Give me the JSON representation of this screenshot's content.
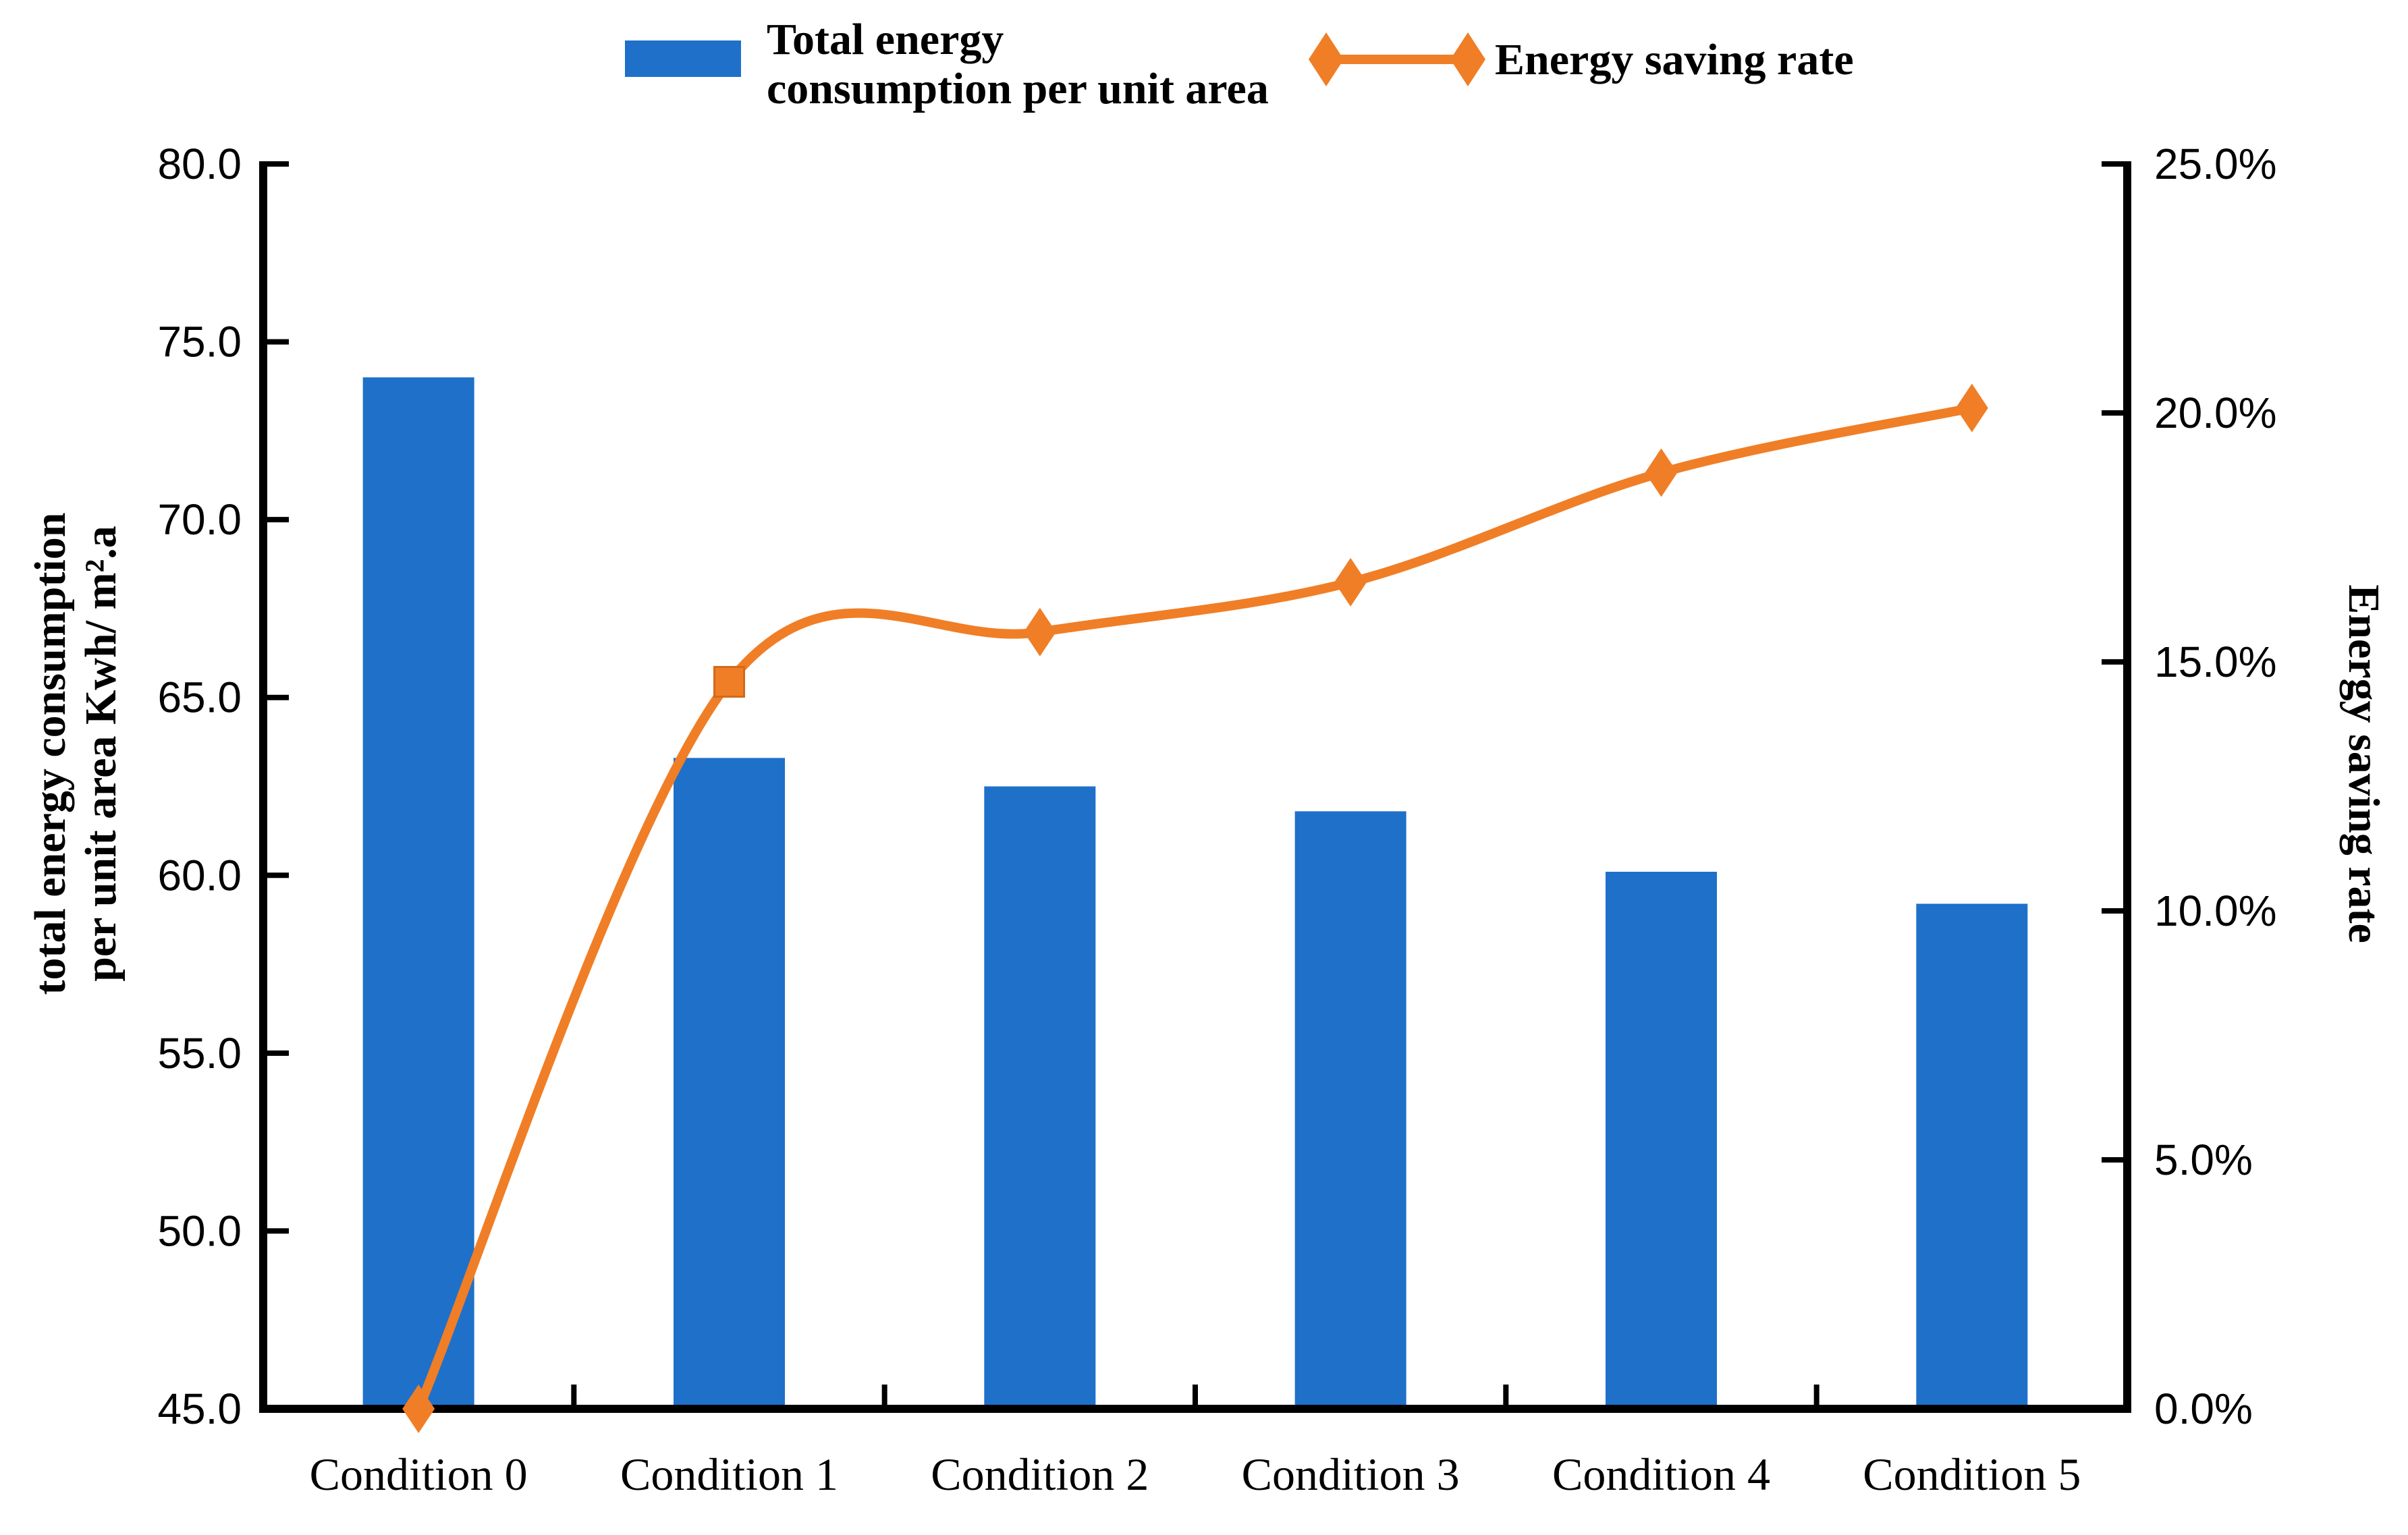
{
  "chart_data": {
    "type": "combo-bar-line",
    "categories": [
      "Condition 0",
      "Condition 1",
      "Condition 2",
      "Condition 3",
      "Condition 4",
      "Condition 5"
    ],
    "series": [
      {
        "name": "Total energy consumption per unit area",
        "type": "bar",
        "axis": "left",
        "color": "#1F70C9",
        "values": [
          74.0,
          63.3,
          62.5,
          61.8,
          60.1,
          59.2
        ]
      },
      {
        "name": "Energy saving rate",
        "type": "line",
        "axis": "right",
        "color": "#F07E26",
        "values": [
          0.0,
          14.6,
          15.6,
          16.6,
          18.8,
          20.1
        ],
        "marker_shapes": [
          "diamond",
          "square",
          "diamond",
          "diamond",
          "diamond",
          "diamond"
        ]
      }
    ],
    "left_axis": {
      "title_line1": "total energy consumption",
      "title_line2": "per unit area Kwh/ m².a",
      "min": 45,
      "max": 80,
      "step": 5,
      "tick_labels": [
        "45.0",
        "50.0",
        "55.0",
        "60.0",
        "65.0",
        "70.0",
        "75.0",
        "80.0"
      ]
    },
    "right_axis": {
      "title": "Energy saving rate",
      "min": 0,
      "max": 25,
      "step": 5,
      "tick_labels": [
        "0.0%",
        "5.0%",
        "10.0%",
        "15.0%",
        "20.0%",
        "25.0%"
      ]
    },
    "legend": {
      "bar_line1": "Total energy",
      "bar_line2": "consumption per unit area",
      "line_label": "Energy saving rate"
    },
    "grid": "off",
    "legend_position": "top-center",
    "axis_color": "#000000",
    "background": "#ffffff"
  }
}
